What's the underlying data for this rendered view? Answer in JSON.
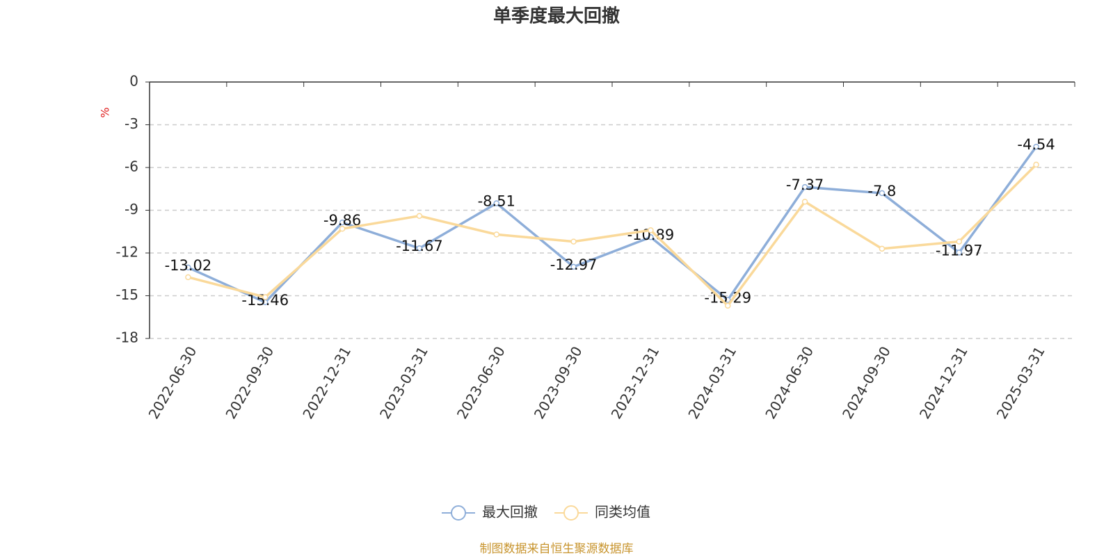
{
  "chart_data": {
    "type": "line",
    "title": "单季度最大回撤",
    "y_label": "%",
    "categories": [
      "2022-06-30",
      "2022-09-30",
      "2022-12-31",
      "2023-03-31",
      "2023-06-30",
      "2023-09-30",
      "2023-12-31",
      "2024-03-31",
      "2024-06-30",
      "2024-09-30",
      "2024-12-31",
      "2025-03-31"
    ],
    "series": [
      {
        "name": "最大回撤",
        "color": "#8eaed9",
        "labels": true,
        "values": [
          -13.02,
          -15.46,
          -9.86,
          -11.67,
          -8.51,
          -12.97,
          -10.89,
          -15.29,
          -7.37,
          -7.8,
          -11.97,
          -4.54
        ]
      },
      {
        "name": "同类均值",
        "color": "#fad99a",
        "labels": false,
        "values": [
          -13.7,
          -15.1,
          -10.3,
          -9.4,
          -10.7,
          -11.2,
          -10.4,
          -15.7,
          -8.4,
          -11.7,
          -11.2,
          -5.8
        ]
      }
    ],
    "ylim": [
      -18,
      0
    ],
    "yticks": [
      0,
      -3,
      -6,
      -9,
      -12,
      -15,
      -18
    ],
    "grid": true,
    "source": "制图数据来自恒生聚源数据库"
  }
}
